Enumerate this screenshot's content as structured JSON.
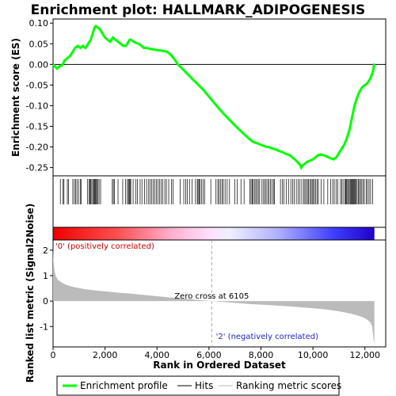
{
  "chart_data": {
    "type": "line",
    "title": "Enrichment plot: HALLMARK_ADIPOGENESIS",
    "xlabel": "Rank in Ordered Dataset",
    "es_panel": {
      "ylabel": "Enrichment score (ES)",
      "ylim": [
        -0.27,
        0.11
      ],
      "yticks": [
        "0.10",
        "0.05",
        "0.00",
        "-0.05",
        "-0.10",
        "-0.15",
        "-0.20",
        "-0.25"
      ],
      "series": [
        {
          "name": "Enrichment profile",
          "color": "#00ff00",
          "x": [
            0,
            150,
            250,
            350,
            450,
            550,
            650,
            750,
            850,
            950,
            1050,
            1150,
            1250,
            1350,
            1450,
            1500,
            1550,
            1600,
            1650,
            1700,
            1750,
            1800,
            1900,
            2000,
            2100,
            2200,
            2300,
            2400,
            2500,
            2600,
            2700,
            2800,
            2900,
            2950,
            3000,
            3100,
            3200,
            3300,
            3400,
            3500,
            3600,
            3700,
            3800,
            3900,
            4000,
            4100,
            4200,
            4300,
            4400,
            4500,
            4600,
            4700,
            4800,
            5000,
            5200,
            5400,
            5600,
            5800,
            6000,
            6200,
            6400,
            6600,
            6800,
            7000,
            7200,
            7400,
            7600,
            7700,
            7800,
            7900,
            8000,
            8100,
            8200,
            8300,
            8400,
            8500,
            8600,
            8700,
            8800,
            8900,
            9000,
            9100,
            9200,
            9300,
            9400,
            9500,
            9550,
            9600,
            9700,
            9800,
            9900,
            10000,
            10100,
            10200,
            10300,
            10400,
            10500,
            10600,
            10700,
            10800,
            10900,
            11000,
            11100,
            11200,
            11300,
            11400,
            11500,
            11600,
            11700,
            11800,
            11900,
            12000,
            12100,
            12200,
            12300,
            12365
          ],
          "values": [
            0.0,
            -0.01,
            -0.005,
            -0.002,
            0.01,
            0.015,
            0.02,
            0.03,
            0.04,
            0.045,
            0.04,
            0.045,
            0.04,
            0.05,
            0.06,
            0.07,
            0.08,
            0.09,
            0.093,
            0.09,
            0.088,
            0.085,
            0.075,
            0.065,
            0.06,
            0.055,
            0.065,
            0.06,
            0.055,
            0.05,
            0.045,
            0.045,
            0.055,
            0.06,
            0.06,
            0.055,
            0.052,
            0.05,
            0.045,
            0.04,
            0.04,
            0.038,
            0.037,
            0.036,
            0.035,
            0.034,
            0.033,
            0.032,
            0.03,
            0.025,
            0.018,
            0.01,
            0.0,
            -0.012,
            -0.025,
            -0.038,
            -0.05,
            -0.063,
            -0.078,
            -0.093,
            -0.108,
            -0.122,
            -0.135,
            -0.148,
            -0.16,
            -0.172,
            -0.183,
            -0.188,
            -0.19,
            -0.192,
            -0.195,
            -0.197,
            -0.2,
            -0.2,
            -0.203,
            -0.205,
            -0.207,
            -0.21,
            -0.212,
            -0.215,
            -0.218,
            -0.22,
            -0.225,
            -0.23,
            -0.236,
            -0.243,
            -0.25,
            -0.245,
            -0.24,
            -0.235,
            -0.233,
            -0.23,
            -0.225,
            -0.22,
            -0.218,
            -0.22,
            -0.222,
            -0.225,
            -0.228,
            -0.23,
            -0.225,
            -0.215,
            -0.205,
            -0.195,
            -0.18,
            -0.16,
            -0.13,
            -0.1,
            -0.08,
            -0.065,
            -0.055,
            -0.05,
            -0.045,
            -0.035,
            -0.02,
            0.002
          ]
        }
      ]
    },
    "hits_panel": {
      "legend": "Hits",
      "hit_ranks": [
        280,
        380,
        420,
        550,
        600,
        760,
        820,
        870,
        920,
        980,
        1050,
        1090,
        1320,
        1380,
        1420,
        1450,
        1490,
        1530,
        1570,
        1600,
        1620,
        1650,
        1680,
        1720,
        1770,
        1830,
        2280,
        2320,
        2360,
        2500,
        2680,
        2790,
        2860,
        2900,
        2930,
        2960,
        2990,
        3080,
        3180,
        3250,
        3350,
        3420,
        3520,
        3600,
        3680,
        3740,
        3800,
        3860,
        3920,
        3980,
        4040,
        4100,
        4160,
        4220,
        4300,
        4360,
        4450,
        4560,
        4620,
        4890,
        5030,
        5100,
        5170,
        5250,
        5350,
        5480,
        5550,
        5580,
        5620,
        5660,
        5720,
        5780,
        5830,
        6070,
        6270,
        6340,
        6380,
        6440,
        6500,
        6550,
        6620,
        6700,
        6790,
        6990,
        7090,
        7230,
        7350,
        7570,
        7620,
        7660,
        7700,
        7750,
        7800,
        7850,
        7900,
        7950,
        8040,
        8100,
        8150,
        8200,
        8260,
        8310,
        8370,
        8420,
        8480,
        8520,
        8750,
        8820,
        8880,
        8970,
        9060,
        9150,
        9220,
        9280,
        9360,
        9430,
        9500,
        9570,
        9640,
        9690,
        9740,
        9790,
        9830,
        9880,
        9930,
        9970,
        10010,
        10060,
        10110,
        10160,
        10210,
        10320,
        10420,
        10570,
        10680,
        10760,
        10820,
        10890,
        10960,
        11060,
        11110,
        11160,
        11230,
        11260,
        11290,
        11330,
        11370,
        11400,
        11440,
        11470,
        11500,
        11530,
        11560,
        11590,
        11620,
        11660,
        11700,
        11750,
        11790,
        11830,
        11880,
        11930,
        11980,
        12050,
        12100,
        12160,
        12220,
        12300
      ]
    },
    "metric_panel": {
      "ylabel": "Ranked list metric (Signal2Noise)",
      "ylim": [
        -1.8,
        2.4
      ],
      "yticks": [
        "2",
        "1",
        "0",
        "-1"
      ],
      "legend": "Ranking metric scores",
      "x": [
        0,
        20,
        60,
        120,
        200,
        350,
        500,
        800,
        1200,
        1600,
        2000,
        2500,
        3000,
        3500,
        4000,
        4500,
        5000,
        5500,
        6105,
        6500,
        7000,
        7500,
        8000,
        8500,
        9000,
        9500,
        10000,
        10500,
        11000,
        11400,
        11700,
        11900,
        12050,
        12150,
        12200,
        12250,
        12280,
        12300,
        12330,
        12365
      ],
      "values": [
        2.1,
        1.5,
        1.15,
        0.95,
        0.82,
        0.72,
        0.64,
        0.55,
        0.47,
        0.42,
        0.38,
        0.33,
        0.29,
        0.24,
        0.19,
        0.14,
        0.1,
        0.05,
        0.0,
        -0.03,
        -0.07,
        -0.11,
        -0.14,
        -0.17,
        -0.2,
        -0.24,
        -0.28,
        -0.33,
        -0.4,
        -0.48,
        -0.56,
        -0.63,
        -0.7,
        -0.78,
        -0.83,
        -0.92,
        -1.0,
        -1.2,
        -1.5,
        -1.7
      ],
      "zero_cross_label": "Zero cross at 6105",
      "zero_cross": 6105,
      "pos_label": "'0' (positively correlated)",
      "neg_label": "'2' (negatively correlated)"
    },
    "x_axis": {
      "xlim": [
        0,
        12800
      ],
      "ticks": [
        0,
        2000,
        4000,
        6000,
        8000,
        10000,
        12000
      ],
      "tick_labels": [
        "0",
        "2,000",
        "4,000",
        "6,000",
        "8,000",
        "10,000",
        "12,000"
      ],
      "n_genes": 12365
    },
    "legend_entries": [
      "Enrichment profile",
      "Hits",
      "Ranking metric scores"
    ],
    "colors": {
      "es_line": "#00ff00",
      "pos": "#ff0000",
      "neg": "#0000ff",
      "metric_fill": "#bbbbbb",
      "pos_label": "#cc0000",
      "neg_label": "#2222cc"
    }
  }
}
